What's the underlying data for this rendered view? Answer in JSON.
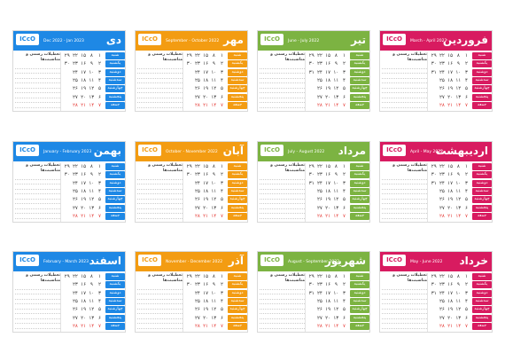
{
  "logo_text": "ICcO",
  "notes_heading": "تعطیلات رسمی و مناسبت‌ها",
  "weekdays": [
    "شنبه",
    "یکشنبه",
    "دوشنبه",
    "سه‌شنبه",
    "چهارشنبه",
    "پنجشنبه",
    "جمعه"
  ],
  "months": [
    {
      "name": "دی",
      "range": "Dec 2022 - Jan 2023",
      "color": "#1e88e5",
      "weeks": [
        [
          "۱",
          "۲",
          "۳",
          "۴",
          "۵",
          "۶",
          "۷"
        ],
        [
          "۸",
          "۹",
          "۱۰",
          "۱۱",
          "۱۲",
          "۱۳",
          "۱۴"
        ],
        [
          "۱۵",
          "۱۶",
          "۱۷",
          "۱۸",
          "۱۹",
          "۲۰",
          "۲۱"
        ],
        [
          "۲۲",
          "۲۳",
          "۲۴",
          "۲۵",
          "۲۶",
          "۲۷",
          "۲۸"
        ],
        [
          "۲۹",
          "۳۰",
          "",
          "",
          "",
          "",
          ""
        ]
      ]
    },
    {
      "name": "مهر",
      "range": "September - October 2022",
      "color": "#f39c12",
      "weeks": [
        [
          "۱",
          "۲",
          "۳",
          "۴",
          "۵",
          "۶",
          "۷"
        ],
        [
          "۸",
          "۹",
          "۱۰",
          "۱۱",
          "۱۲",
          "۱۳",
          "۱۴"
        ],
        [
          "۱۵",
          "۱۶",
          "۱۷",
          "۱۸",
          "۱۹",
          "۲۰",
          "۲۱"
        ],
        [
          "۲۲",
          "۲۳",
          "۲۴",
          "۲۵",
          "۲۶",
          "۲۷",
          "۲۸"
        ],
        [
          "۲۹",
          "۳۰",
          "",
          "",
          "",
          "",
          ""
        ]
      ]
    },
    {
      "name": "تیر",
      "range": "June - July 2022",
      "color": "#7cb342",
      "weeks": [
        [
          "۱",
          "۲",
          "۳",
          "۴",
          "۵",
          "۶",
          "۷"
        ],
        [
          "۸",
          "۹",
          "۱۰",
          "۱۱",
          "۱۲",
          "۱۳",
          "۱۴"
        ],
        [
          "۱۵",
          "۱۶",
          "۱۷",
          "۱۸",
          "۱۹",
          "۲۰",
          "۲۱"
        ],
        [
          "۲۲",
          "۲۳",
          "۲۴",
          "۲۵",
          "۲۶",
          "۲۷",
          "۲۸"
        ],
        [
          "۲۹",
          "۳۰",
          "۳۱",
          "",
          "",
          "",
          ""
        ]
      ]
    },
    {
      "name": "فروردین",
      "range": "March - April 2022",
      "color": "#d81b60",
      "weeks": [
        [
          "۱",
          "۲",
          "۳",
          "۴",
          "۵",
          "۶",
          "۷"
        ],
        [
          "۸",
          "۹",
          "۱۰",
          "۱۱",
          "۱۲",
          "۱۳",
          "۱۴"
        ],
        [
          "۱۵",
          "۱۶",
          "۱۷",
          "۱۸",
          "۱۹",
          "۲۰",
          "۲۱"
        ],
        [
          "۲۲",
          "۲۳",
          "۲۴",
          "۲۵",
          "۲۶",
          "۲۷",
          "۲۸"
        ],
        [
          "۲۹",
          "۳۰",
          "۳۱",
          "",
          "",
          "",
          ""
        ]
      ]
    },
    {
      "name": "بهمن",
      "range": "January - February 2023",
      "color": "#1e88e5",
      "weeks": [
        [
          "۱",
          "۲",
          "۳",
          "۴",
          "۵",
          "۶",
          "۷"
        ],
        [
          "۸",
          "۹",
          "۱۰",
          "۱۱",
          "۱۲",
          "۱۳",
          "۱۴"
        ],
        [
          "۱۵",
          "۱۶",
          "۱۷",
          "۱۸",
          "۱۹",
          "۲۰",
          "۲۱"
        ],
        [
          "۲۲",
          "۲۳",
          "۲۴",
          "۲۵",
          "۲۶",
          "۲۷",
          "۲۸"
        ],
        [
          "۲۹",
          "۳۰",
          "",
          "",
          "",
          "",
          ""
        ]
      ]
    },
    {
      "name": "آبان",
      "range": "October - November 2022",
      "color": "#f39c12",
      "weeks": [
        [
          "۱",
          "۲",
          "۳",
          "۴",
          "۵",
          "۶",
          "۷"
        ],
        [
          "۸",
          "۹",
          "۱۰",
          "۱۱",
          "۱۲",
          "۱۳",
          "۱۴"
        ],
        [
          "۱۵",
          "۱۶",
          "۱۷",
          "۱۸",
          "۱۹",
          "۲۰",
          "۲۱"
        ],
        [
          "۲۲",
          "۲۳",
          "۲۴",
          "۲۵",
          "۲۶",
          "۲۷",
          "۲۸"
        ],
        [
          "۲۹",
          "۳۰",
          "",
          "",
          "",
          "",
          ""
        ]
      ]
    },
    {
      "name": "مرداد",
      "range": "July - August 2022",
      "color": "#7cb342",
      "weeks": [
        [
          "۱",
          "۲",
          "۳",
          "۴",
          "۵",
          "۶",
          "۷"
        ],
        [
          "۸",
          "۹",
          "۱۰",
          "۱۱",
          "۱۲",
          "۱۳",
          "۱۴"
        ],
        [
          "۱۵",
          "۱۶",
          "۱۷",
          "۱۸",
          "۱۹",
          "۲۰",
          "۲۱"
        ],
        [
          "۲۲",
          "۲۳",
          "۲۴",
          "۲۵",
          "۲۶",
          "۲۷",
          "۲۸"
        ],
        [
          "۲۹",
          "۳۰",
          "۳۱",
          "",
          "",
          "",
          ""
        ]
      ]
    },
    {
      "name": "اردیبهشت",
      "range": "April - May 2022",
      "color": "#d81b60",
      "weeks": [
        [
          "۱",
          "۲",
          "۳",
          "۴",
          "۵",
          "۶",
          "۷"
        ],
        [
          "۸",
          "۹",
          "۱۰",
          "۱۱",
          "۱۲",
          "۱۳",
          "۱۴"
        ],
        [
          "۱۵",
          "۱۶",
          "۱۷",
          "۱۸",
          "۱۹",
          "۲۰",
          "۲۱"
        ],
        [
          "۲۲",
          "۲۳",
          "۲۴",
          "۲۵",
          "۲۶",
          "۲۷",
          "۲۸"
        ],
        [
          "۲۹",
          "۳۰",
          "۳۱",
          "",
          "",
          "",
          ""
        ]
      ]
    },
    {
      "name": "اسفند",
      "range": "February - March 2023",
      "color": "#1e88e5",
      "weeks": [
        [
          "۱",
          "۲",
          "۳",
          "۴",
          "۵",
          "۶",
          "۷"
        ],
        [
          "۸",
          "۹",
          "۱۰",
          "۱۱",
          "۱۲",
          "۱۳",
          "۱۴"
        ],
        [
          "۱۵",
          "۱۶",
          "۱۷",
          "۱۸",
          "۱۹",
          "۲۰",
          "۲۱"
        ],
        [
          "۲۲",
          "۲۳",
          "۲۴",
          "۲۵",
          "۲۶",
          "۲۷",
          "۲۸"
        ],
        [
          "۲۹",
          "",
          "",
          "",
          "",
          "",
          ""
        ]
      ]
    },
    {
      "name": "آذر",
      "range": "November - December 2022",
      "color": "#f39c12",
      "weeks": [
        [
          "۱",
          "۲",
          "۳",
          "۴",
          "۵",
          "۶",
          "۷"
        ],
        [
          "۸",
          "۹",
          "۱۰",
          "۱۱",
          "۱۲",
          "۱۳",
          "۱۴"
        ],
        [
          "۱۵",
          "۱۶",
          "۱۷",
          "۱۸",
          "۱۹",
          "۲۰",
          "۲۱"
        ],
        [
          "۲۲",
          "۲۳",
          "۲۴",
          "۲۵",
          "۲۶",
          "۲۷",
          "۲۸"
        ],
        [
          "۲۹",
          "۳۰",
          "",
          "",
          "",
          "",
          ""
        ]
      ]
    },
    {
      "name": "شهریور",
      "range": "August - September 2022",
      "color": "#7cb342",
      "weeks": [
        [
          "۱",
          "۲",
          "۳",
          "۴",
          "۵",
          "۶",
          "۷"
        ],
        [
          "۸",
          "۹",
          "۱۰",
          "۱۱",
          "۱۲",
          "۱۳",
          "۱۴"
        ],
        [
          "۱۵",
          "۱۶",
          "۱۷",
          "۱۸",
          "۱۹",
          "۲۰",
          "۲۱"
        ],
        [
          "۲۲",
          "۲۳",
          "۲۴",
          "۲۵",
          "۲۶",
          "۲۷",
          "۲۸"
        ],
        [
          "۲۹",
          "۳۰",
          "۳۱",
          "",
          "",
          "",
          ""
        ]
      ]
    },
    {
      "name": "خرداد",
      "range": "May - June 2022",
      "color": "#d81b60",
      "weeks": [
        [
          "۱",
          "۲",
          "۳",
          "۴",
          "۵",
          "۶",
          "۷"
        ],
        [
          "۸",
          "۹",
          "۱۰",
          "۱۱",
          "۱۲",
          "۱۳",
          "۱۴"
        ],
        [
          "۱۵",
          "۱۶",
          "۱۷",
          "۱۸",
          "۱۹",
          "۲۰",
          "۲۱"
        ],
        [
          "۲۲",
          "۲۳",
          "۲۴",
          "۲۵",
          "۲۶",
          "۲۷",
          "۲۸"
        ],
        [
          "۲۹",
          "۳۰",
          "۳۱",
          "",
          "",
          "",
          ""
        ]
      ]
    }
  ]
}
